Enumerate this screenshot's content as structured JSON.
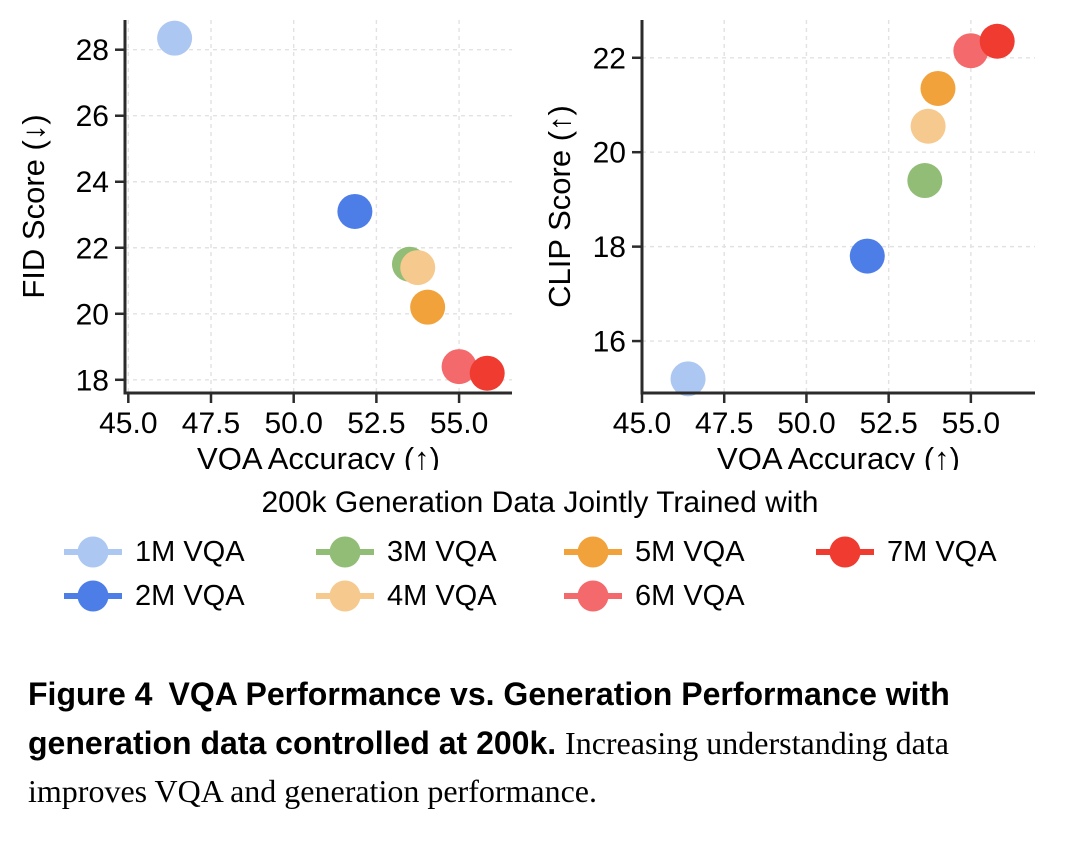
{
  "colors": {
    "background": "#ffffff",
    "grid": "#e2e2e2",
    "spine": "#2b2b2b",
    "text": "#000000"
  },
  "series_colors": {
    "1M VQA": "#acc7f1",
    "2M VQA": "#4d7ee8",
    "3M VQA": "#92bd76",
    "4M VQA": "#f6c98e",
    "5M VQA": "#f2a23b",
    "6M VQA": "#f4696b",
    "7M VQA": "#ef3b30"
  },
  "chart_data": [
    {
      "type": "scatter",
      "title": "",
      "xlabel": "VQA Accuracy (↑)",
      "ylabel": "FID Score (↓)",
      "xlim": [
        44.9,
        56.6
      ],
      "ylim": [
        17.6,
        28.9
      ],
      "xticks": [
        45.0,
        47.5,
        50.0,
        52.5,
        55.0
      ],
      "xtick_labels": [
        "45.0",
        "47.5",
        "50.0",
        "52.5",
        "55.0"
      ],
      "yticks": [
        18,
        20,
        22,
        24,
        26,
        28
      ],
      "ytick_labels": [
        "18",
        "20",
        "22",
        "24",
        "26",
        "28"
      ],
      "grid": true,
      "points": [
        {
          "label": "1M VQA",
          "x": 46.4,
          "y": 28.35
        },
        {
          "label": "2M VQA",
          "x": 51.85,
          "y": 23.1
        },
        {
          "label": "3M VQA",
          "x": 53.5,
          "y": 21.5
        },
        {
          "label": "4M VQA",
          "x": 53.75,
          "y": 21.4
        },
        {
          "label": "5M VQA",
          "x": 54.05,
          "y": 20.2
        },
        {
          "label": "6M VQA",
          "x": 55.0,
          "y": 18.4
        },
        {
          "label": "7M VQA",
          "x": 55.85,
          "y": 18.2
        }
      ]
    },
    {
      "type": "scatter",
      "title": "",
      "xlabel": "VQA Accuracy (↑)",
      "ylabel": "CLIP Score (↑)",
      "xlim": [
        45.0,
        56.95
      ],
      "ylim": [
        14.9,
        22.8
      ],
      "xticks": [
        45.0,
        47.5,
        50.0,
        52.5,
        55.0
      ],
      "xtick_labels": [
        "45.0",
        "47.5",
        "50.0",
        "52.5",
        "55.0"
      ],
      "yticks": [
        16,
        18,
        20,
        22
      ],
      "ytick_labels": [
        "16",
        "18",
        "20",
        "22"
      ],
      "grid": true,
      "points": [
        {
          "label": "1M VQA",
          "x": 46.4,
          "y": 15.2
        },
        {
          "label": "2M VQA",
          "x": 51.85,
          "y": 17.8
        },
        {
          "label": "3M VQA",
          "x": 53.6,
          "y": 19.4
        },
        {
          "label": "4M VQA",
          "x": 53.7,
          "y": 20.55
        },
        {
          "label": "5M VQA",
          "x": 54.0,
          "y": 21.35
        },
        {
          "label": "6M VQA",
          "x": 55.0,
          "y": 22.15
        },
        {
          "label": "7M VQA",
          "x": 55.8,
          "y": 22.35
        }
      ]
    }
  ],
  "legend": {
    "title": "200k Generation Data Jointly Trained with",
    "position": "below charts, 4 columns x 2 rows, column-major",
    "items": [
      {
        "label": "1M VQA",
        "color": "#acc7f1"
      },
      {
        "label": "2M VQA",
        "color": "#4d7ee8"
      },
      {
        "label": "3M VQA",
        "color": "#92bd76"
      },
      {
        "label": "4M VQA",
        "color": "#f6c98e"
      },
      {
        "label": "5M VQA",
        "color": "#f2a23b"
      },
      {
        "label": "6M VQA",
        "color": "#f4696b"
      },
      {
        "label": "7M VQA",
        "color": "#ef3b30"
      }
    ]
  },
  "caption": {
    "label": "Figure 4",
    "bold_text": "VQA Performance vs. Generation Performance with generation data controlled at 200k.",
    "normal_text": "Increasing understanding data improves VQA and generation performance."
  }
}
